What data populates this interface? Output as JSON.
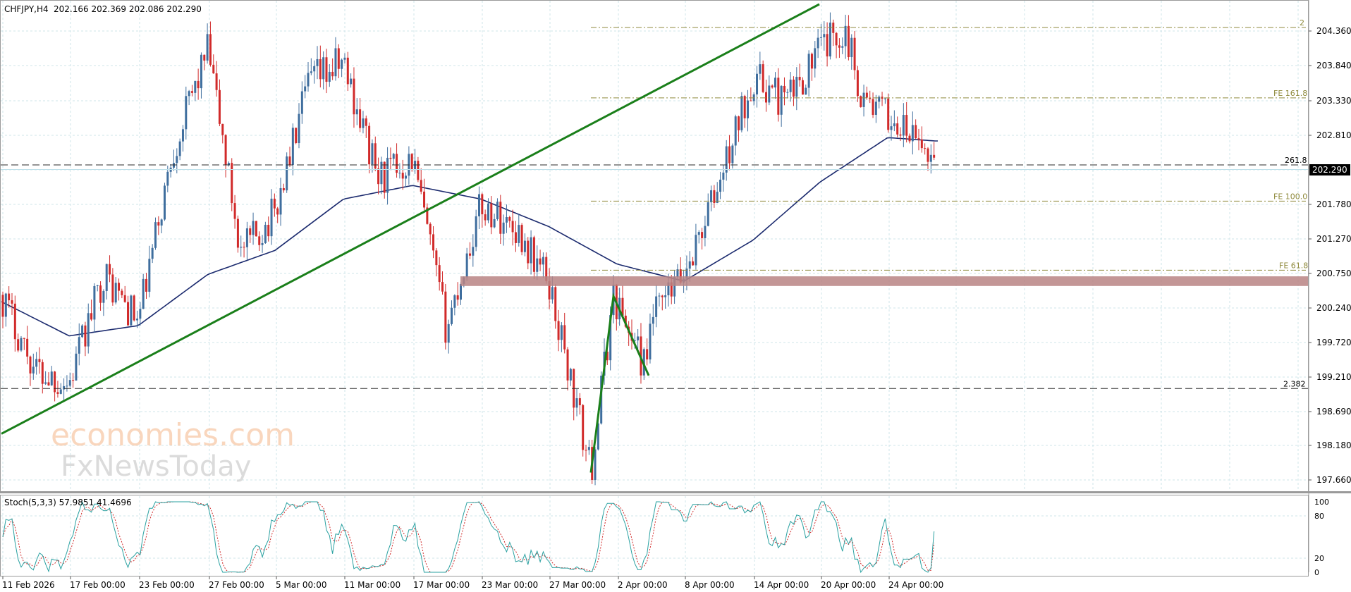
{
  "header": {
    "symbol": "CHFJPY,H4",
    "ohlc": "202.166 202.369 202.086 202.290"
  },
  "price_axis": {
    "labels": [
      "204.360",
      "203.840",
      "203.330",
      "202.810",
      "202.290",
      "201.780",
      "201.270",
      "200.750",
      "200.240",
      "199.720",
      "199.210",
      "198.690",
      "198.180",
      "197.660"
    ],
    "current_price": "202.290"
  },
  "time_axis": {
    "labels": [
      "11 Feb 2026",
      "17 Feb 00:00",
      "23 Feb 00:00",
      "27 Feb 00:00",
      "5 Mar 00:00",
      "11 Mar 00:00",
      "17 Mar 00:00",
      "23 Mar 00:00",
      "27 Mar 00:00",
      "2 Apr 00:00",
      "8 Apr 00:00",
      "14 Apr 00:00",
      "20 Apr 00:00",
      "24 Apr 00:00"
    ]
  },
  "levels": {
    "fe_2": "2",
    "fe_161_8": "FE 161.8",
    "fe_100": "FE 100.0",
    "fe_61_8": "FE 61.8",
    "fib_261_8": "261.8",
    "fib_2_382": "2.382"
  },
  "watermark": {
    "line1": "economies.com",
    "line2": "FxNewsToday"
  },
  "stoch": {
    "label": "Stoch(5,3,3) 57.9851 41.4696",
    "axis_labels": [
      "100",
      "80",
      "20",
      "0"
    ]
  },
  "colors": {
    "up_candle": "#3f6e9e",
    "down_candle": "#d12a2a",
    "moving_average": "#1b2a6e",
    "trend_line": "#1a7f1a",
    "fib_lines": "#8f8a3c",
    "zone": "#b88484",
    "stoch_main": "#2aa1a1",
    "stoch_signal": "#d12a2a"
  },
  "chart_data": {
    "type": "candlestick",
    "symbol": "CHFJPY",
    "timeframe": "H4",
    "ylim": [
      197.5,
      204.55
    ],
    "close_path": [
      {
        "t": "11 Feb 2026",
        "close": 200.3
      },
      {
        "t": "13 Feb",
        "close": 199.2
      },
      {
        "t": "17 Feb 00:00",
        "close": 199.0
      },
      {
        "t": "19 Feb",
        "close": 200.6
      },
      {
        "t": "23 Feb 00:00",
        "close": 199.9
      },
      {
        "t": "25 Feb",
        "close": 202.4
      },
      {
        "t": "27 Feb 00:00",
        "close": 203.9
      },
      {
        "t": "2 Mar",
        "close": 200.9
      },
      {
        "t": "5 Mar 00:00",
        "close": 201.5
      },
      {
        "t": "9 Mar",
        "close": 203.4
      },
      {
        "t": "11 Mar 00:00",
        "close": 203.7
      },
      {
        "t": "13 Mar",
        "close": 202.0
      },
      {
        "t": "17 Mar 00:00",
        "close": 202.3
      },
      {
        "t": "19 Mar",
        "close": 199.8
      },
      {
        "t": "23 Mar 00:00",
        "close": 201.6
      },
      {
        "t": "25 Mar",
        "close": 201.3
      },
      {
        "t": "27 Mar 00:00",
        "close": 200.5
      },
      {
        "t": "30 Mar",
        "close": 197.7
      },
      {
        "t": "31 Mar",
        "close": 200.3
      },
      {
        "t": "1 Apr",
        "close": 199.1
      },
      {
        "t": "2 Apr 00:00",
        "close": 199.7
      },
      {
        "t": "6 Apr",
        "close": 199.9
      },
      {
        "t": "8 Apr 00:00",
        "close": 200.6
      },
      {
        "t": "10 Apr",
        "close": 201.9
      },
      {
        "t": "14 Apr 00:00",
        "close": 203.5
      },
      {
        "t": "16 Apr",
        "close": 203.1
      },
      {
        "t": "20 Apr 00:00",
        "close": 203.9
      },
      {
        "t": "21 Apr",
        "close": 204.2
      },
      {
        "t": "22 Apr",
        "close": 203.2
      },
      {
        "t": "24 Apr 00:00",
        "close": 202.9
      },
      {
        "t": "27 Apr",
        "close": 202.29
      }
    ],
    "moving_average": [
      {
        "t": "11 Feb 2026",
        "value": 200.2
      },
      {
        "t": "17 Feb 00:00",
        "value": 199.7
      },
      {
        "t": "23 Feb 00:00",
        "value": 199.85
      },
      {
        "t": "27 Feb 00:00",
        "value": 200.6
      },
      {
        "t": "5 Mar 00:00",
        "value": 200.95
      },
      {
        "t": "11 Mar 00:00",
        "value": 201.7
      },
      {
        "t": "17 Mar 00:00",
        "value": 201.9
      },
      {
        "t": "23 Mar 00:00",
        "value": 201.7
      },
      {
        "t": "27 Mar 00:00",
        "value": 201.3
      },
      {
        "t": "2 Apr 00:00",
        "value": 200.75
      },
      {
        "t": "8 Apr 00:00",
        "value": 200.5
      },
      {
        "t": "14 Apr 00:00",
        "value": 201.1
      },
      {
        "t": "20 Apr 00:00",
        "value": 201.95
      },
      {
        "t": "24 Apr 00:00",
        "value": 202.6
      },
      {
        "t": "27 Apr",
        "value": 202.55
      }
    ],
    "horizontal_levels": [
      {
        "label": "2",
        "price": 204.21
      },
      {
        "label": "FE 161.8",
        "price": 203.18
      },
      {
        "label": "261.8",
        "price": 202.2
      },
      {
        "label": "FE 100.0",
        "price": 201.67
      },
      {
        "label": "FE 61.8",
        "price": 200.66
      },
      {
        "label": "2.382",
        "price": 198.93
      }
    ],
    "support_zone": {
      "from": 200.45,
      "to": 200.55
    },
    "trend_line": [
      {
        "t": "11 Feb 2026",
        "price": 198.33
      },
      {
        "t": "20 Apr 00:00",
        "price": 204.55
      }
    ],
    "pattern_legs": [
      {
        "t": "30 Mar",
        "price": 197.7
      },
      {
        "t": "31 Mar",
        "price": 200.28
      },
      {
        "t": "1 Apr",
        "price": 199.12
      }
    ],
    "stochastic": {
      "period": "5,3,3",
      "main": 57.9851,
      "signal": 41.4696,
      "ylim": [
        0,
        100
      ],
      "levels": [
        20,
        80
      ]
    }
  }
}
